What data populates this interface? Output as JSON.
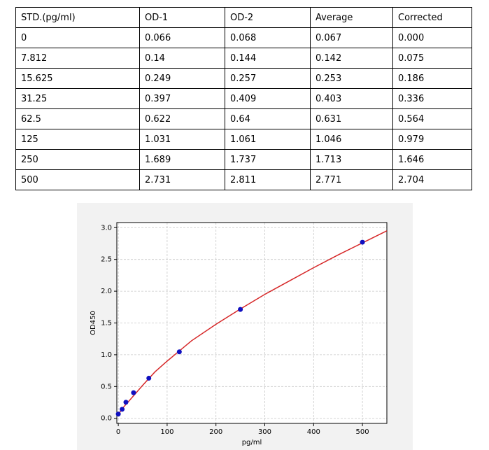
{
  "table": {
    "rows": [
      [
        "STD.(pg/ml)",
        "OD-1",
        "OD-2",
        "Average",
        "Corrected"
      ],
      [
        "0",
        "0.066",
        "0.068",
        "0.067",
        "0.000"
      ],
      [
        "7.812",
        "0.14",
        "0.144",
        "0.142",
        "0.075"
      ],
      [
        "15.625",
        "0.249",
        "0.257",
        "0.253",
        "0.186"
      ],
      [
        "31.25",
        "0.397",
        "0.409",
        "0.403",
        "0.336"
      ],
      [
        "62.5",
        "0.622",
        "0.64",
        "0.631",
        "0.564"
      ],
      [
        "125",
        "1.031",
        "1.061",
        "1.046",
        "0.979"
      ],
      [
        "250",
        "1.689",
        "1.737",
        "1.713",
        "1.646"
      ],
      [
        "500",
        "2.731",
        "2.811",
        "2.771",
        "2.704"
      ]
    ]
  },
  "chart_data": {
    "type": "scatter",
    "x_label": "pg/ml",
    "y_label": "OD450",
    "xlim": [
      -3,
      550
    ],
    "ylim": [
      -0.08,
      3.08
    ],
    "xticks": [
      0,
      100,
      200,
      300,
      400,
      500
    ],
    "yticks": [
      {
        "value": 0,
        "label": "0.0"
      },
      0.5,
      {
        "value": 1,
        "label": "1.0"
      },
      1.5,
      {
        "value": 2,
        "label": "2.0"
      },
      2.5,
      {
        "value": 3,
        "label": "3.0"
      }
    ],
    "grid": true,
    "series": [
      {
        "type": "line",
        "color": "#d62728",
        "x": [
          0,
          10,
          25,
          50,
          75,
          100,
          150,
          200,
          250,
          300,
          350,
          400,
          450,
          500,
          550
        ],
        "values": [
          0.06,
          0.17,
          0.3,
          0.52,
          0.73,
          0.9,
          1.22,
          1.48,
          1.72,
          1.95,
          2.16,
          2.37,
          2.57,
          2.76,
          2.95
        ]
      },
      {
        "type": "scatter",
        "color": "#1010c0",
        "x": [
          0,
          7.812,
          15.625,
          31.25,
          62.5,
          125,
          250,
          500
        ],
        "values": [
          0.067,
          0.142,
          0.253,
          0.403,
          0.631,
          1.046,
          1.713,
          2.771
        ]
      }
    ]
  }
}
